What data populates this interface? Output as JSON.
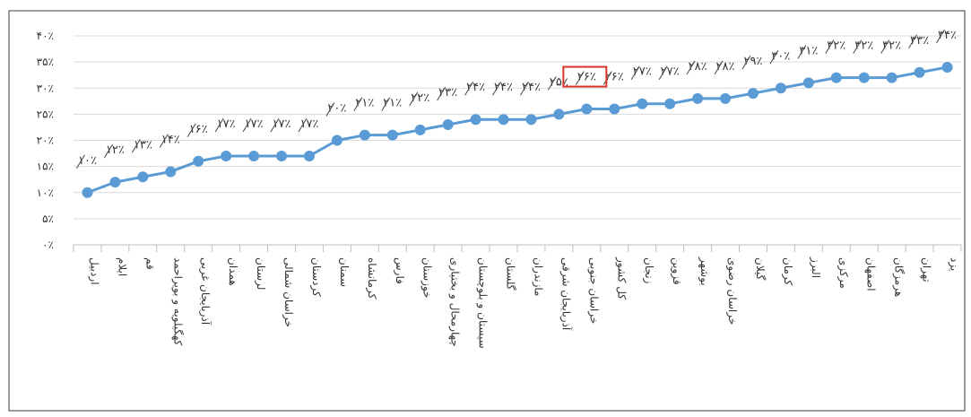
{
  "chart_data": {
    "type": "line",
    "title": "",
    "xlabel": "",
    "ylabel": "",
    "ylim": [
      0,
      40
    ],
    "y_ticks": [
      "۰٪",
      "۵٪",
      "۱۰٪",
      "۱۵٪",
      "۲۰٪",
      "۲۵٪",
      "۳۰٪",
      "۳۵٪",
      "۴۰٪"
    ],
    "y_tick_values": [
      0,
      5,
      10,
      15,
      20,
      25,
      30,
      35,
      40
    ],
    "grid": "horizontal",
    "legend": "none",
    "line_color": "#5b9bd5",
    "highlight_color": "#d9342b",
    "highlight_index": 18,
    "categories": [
      "اردبیل",
      "ایلام",
      "قم",
      "کهگیلویه و بویراحمد",
      "آذربایجان غربی",
      "همدان",
      "لرستان",
      "خراسان شمالی",
      "کردستان",
      "سمنان",
      "کرمانشاه",
      "فارس",
      "خوزستان",
      "چهارمحال و بختیاری",
      "سیستان و بلوچستان",
      "گلستان",
      "مازندران",
      "آذربایجان شرقی",
      "خراسان جنوبی",
      "کل کشور",
      "زنجان",
      "قزوین",
      "بوشهر",
      "خراسان رضوی",
      "گیلان",
      "کرمان",
      "البرز",
      "مرکزی",
      "اصفهان",
      "هرمزگان",
      "تهران",
      "یزد"
    ],
    "values": [
      10,
      12,
      13,
      14,
      16,
      17,
      17,
      17,
      17,
      20,
      21,
      21,
      22,
      23,
      24,
      24,
      24,
      25,
      26,
      26,
      27,
      27,
      28,
      28,
      29,
      30,
      31,
      32,
      32,
      32,
      33,
      34
    ],
    "data_labels": [
      "۱۰٪",
      "۱۲٪",
      "۱۳٪",
      "۱۴٪",
      "۱۶٪",
      "۱۷٪",
      "۱۷٪",
      "۱۷٪",
      "۱۷٪",
      "۲۰٪",
      "۲۱٪",
      "۲۱٪",
      "۲۲٪",
      "۲۳٪",
      "۲۴٪",
      "۲۴٪",
      "۲۴٪",
      "۲۵٪",
      "۲۶٪",
      "۲۶٪",
      "۲۷٪",
      "۲۷٪",
      "۲۸٪",
      "۲۸٪",
      "۲۹٪",
      "۳۰٪",
      "۳۱٪",
      "۳۲٪",
      "۳۲٪",
      "۳۲٪",
      "۳۳٪",
      "۳۴٪"
    ]
  }
}
